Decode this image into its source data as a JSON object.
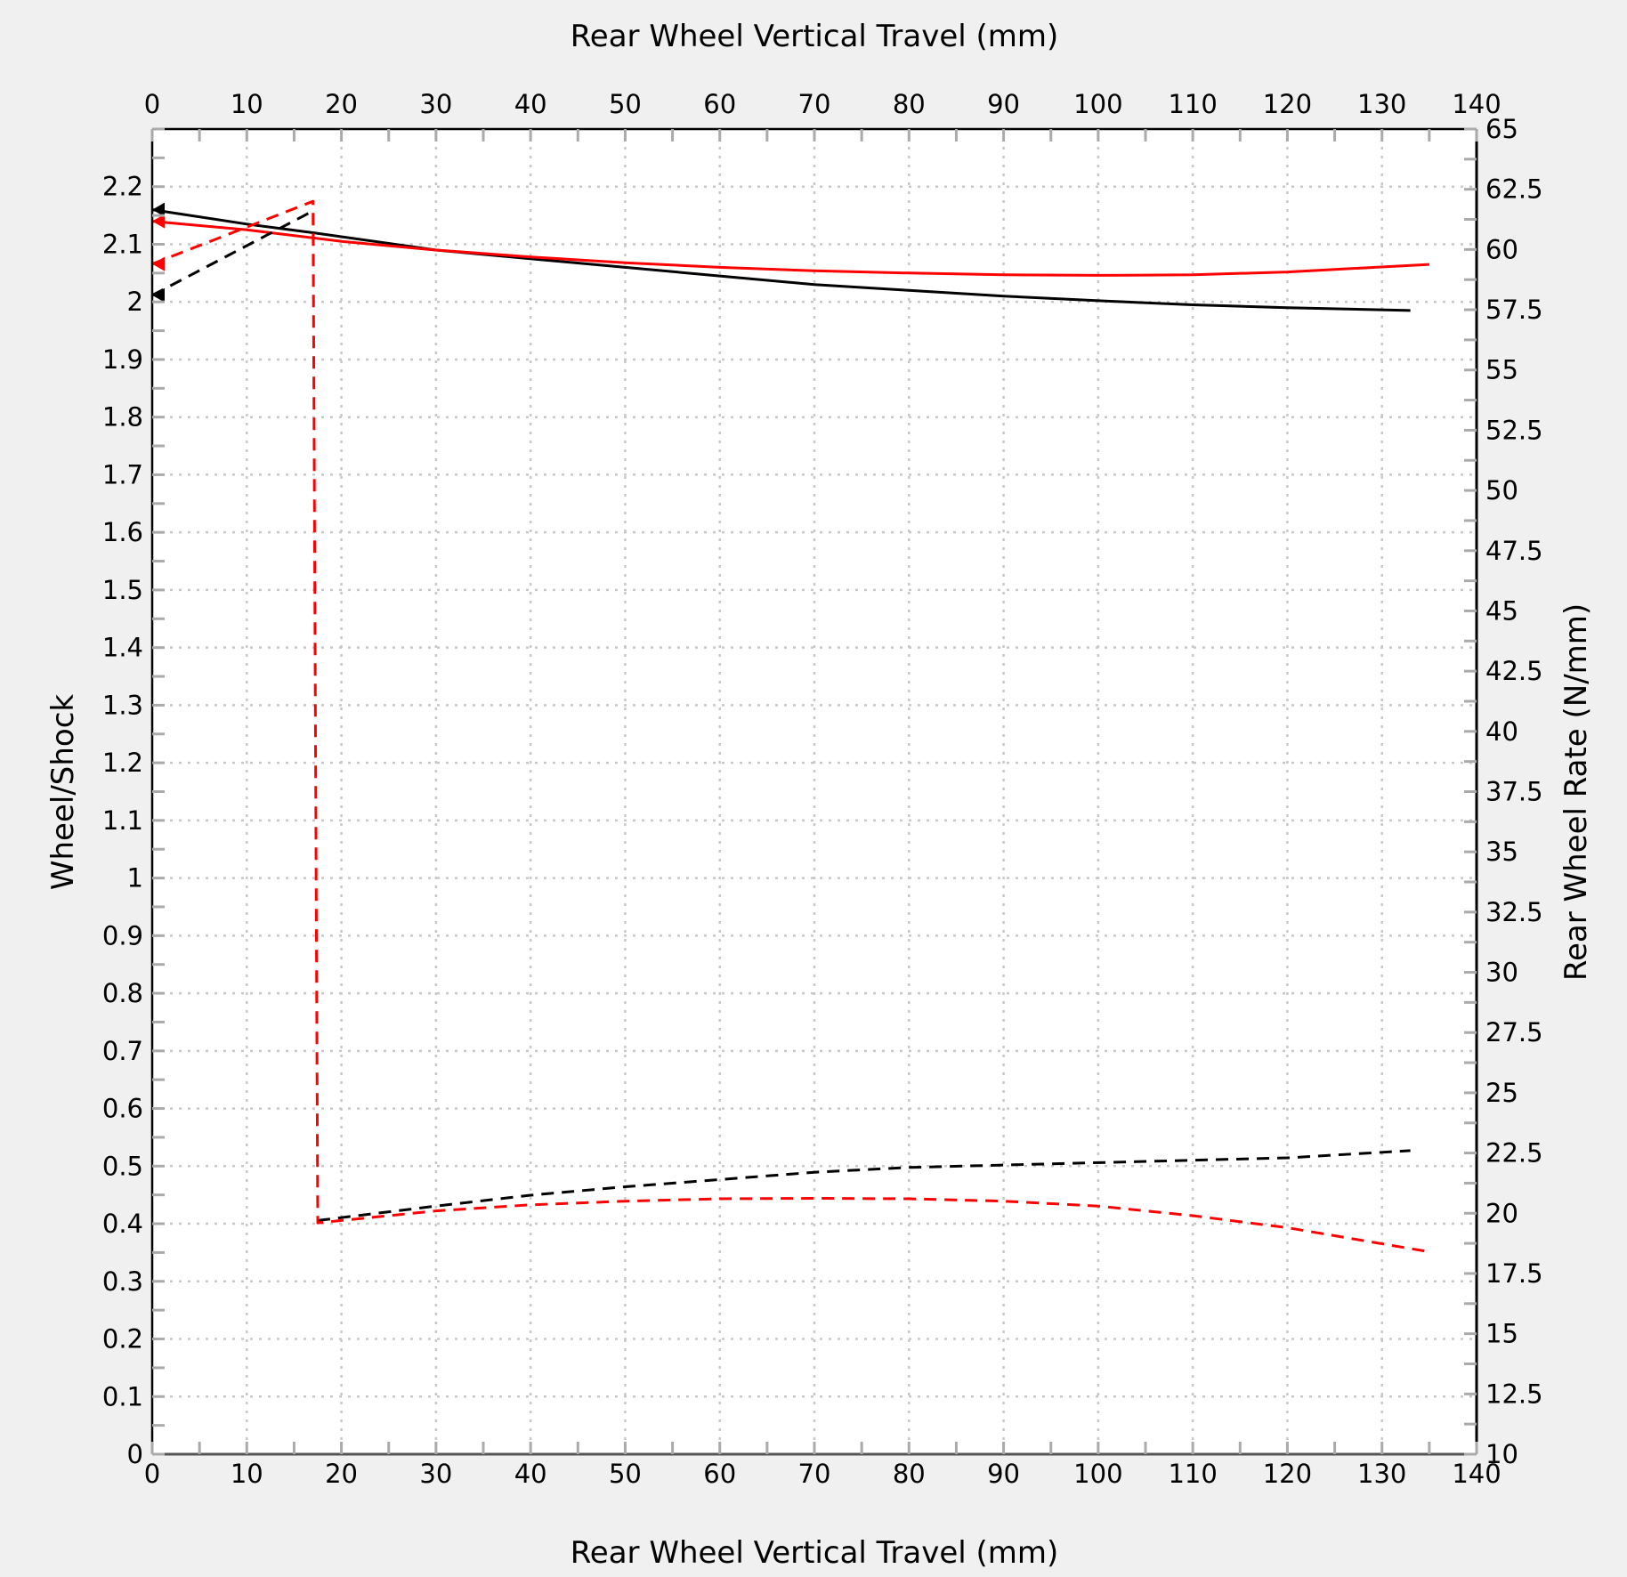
{
  "chart_data": {
    "type": "line",
    "xlabel_top": "Rear Wheel Vertical Travel (mm)",
    "xlabel_bottom": "Rear Wheel Vertical Travel (mm)",
    "ylabel_left": "Wheel/Shock",
    "ylabel_right": "Rear Wheel Rate (N/mm)",
    "xlim": [
      0,
      140
    ],
    "ylim_left": [
      0,
      2.3
    ],
    "ylim_right": [
      10,
      65
    ],
    "x_ticks": [
      0,
      10,
      20,
      30,
      40,
      50,
      60,
      70,
      80,
      90,
      100,
      110,
      120,
      130,
      140
    ],
    "y_left_ticks": [
      0,
      0.1,
      0.2,
      0.3,
      0.4,
      0.5,
      0.6,
      0.7,
      0.8,
      0.9,
      1,
      1.1,
      1.2,
      1.3,
      1.4,
      1.5,
      1.6,
      1.7,
      1.8,
      1.9,
      2,
      2.1,
      2.2
    ],
    "y_right_ticks": [
      10,
      12.5,
      15,
      17.5,
      20,
      22.5,
      25,
      27.5,
      30,
      32.5,
      35,
      37.5,
      40,
      42.5,
      45,
      47.5,
      50,
      52.5,
      55,
      57.5,
      60,
      62.5,
      65
    ],
    "grid": true,
    "series": [
      {
        "axis": "left",
        "color": "#000000",
        "dash": false,
        "x": [
          0,
          10,
          17,
          30,
          40,
          50,
          60,
          70,
          80,
          90,
          100,
          110,
          120,
          133
        ],
        "y": [
          2.16,
          2.135,
          2.12,
          2.09,
          2.075,
          2.06,
          2.045,
          2.03,
          2.02,
          2.01,
          2.002,
          1.995,
          1.99,
          1.985
        ]
      },
      {
        "axis": "left",
        "color": "#ff0000",
        "dash": false,
        "x": [
          0,
          10,
          20,
          30,
          40,
          50,
          60,
          70,
          80,
          90,
          100,
          110,
          120,
          135
        ],
        "y": [
          2.14,
          2.125,
          2.105,
          2.09,
          2.078,
          2.068,
          2.06,
          2.054,
          2.05,
          2.047,
          2.046,
          2.047,
          2.052,
          2.065
        ]
      },
      {
        "axis": "right",
        "color": "#000000",
        "dash": true,
        "x": [
          0,
          17
        ],
        "y": [
          58.1,
          61.6
        ]
      },
      {
        "axis": "right",
        "color": "#000000",
        "dash": true,
        "x": [
          17.5,
          30,
          40,
          50,
          60,
          70,
          80,
          90,
          100,
          110,
          120,
          133
        ],
        "y": [
          19.7,
          20.3,
          20.75,
          21.1,
          21.4,
          21.7,
          21.9,
          22.0,
          22.1,
          22.2,
          22.3,
          22.6
        ]
      },
      {
        "axis": "right",
        "color": "#ff0000",
        "dash": true,
        "x": [
          0,
          17,
          17.5,
          30,
          40,
          50,
          60,
          70,
          80,
          90,
          100,
          110,
          120,
          135
        ],
        "y": [
          59.4,
          62.0,
          19.6,
          20.1,
          20.35,
          20.5,
          20.6,
          20.62,
          20.6,
          20.5,
          20.3,
          19.9,
          19.4,
          18.4
        ]
      }
    ],
    "markers": [
      {
        "axis": "left",
        "x": 0,
        "y": 2.16,
        "color": "#000000",
        "shape": "triangle-left"
      },
      {
        "axis": "left",
        "x": 0,
        "y": 2.14,
        "color": "#ff0000",
        "shape": "triangle-left"
      },
      {
        "axis": "right",
        "x": 0,
        "y": 58.1,
        "color": "#000000",
        "shape": "triangle-left"
      },
      {
        "axis": "right",
        "x": 0,
        "y": 59.4,
        "color": "#ff0000",
        "shape": "triangle-left"
      }
    ]
  }
}
